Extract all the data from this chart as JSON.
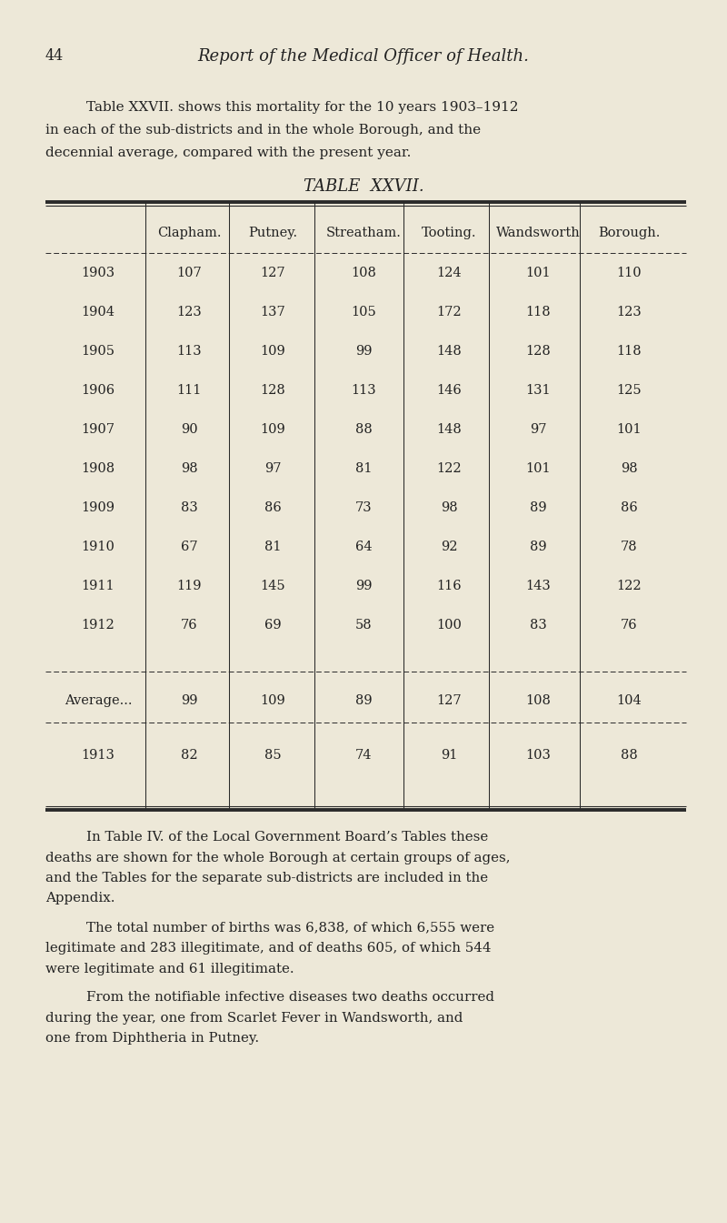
{
  "page_number": "44",
  "page_title": "Report of the Medical Officer of Health.",
  "intro_line1": "Table XXVII. shows this mortality for the 10 years 1903–1912",
  "intro_line2": "in each of the sub-districts and in the whole Borough, and the",
  "intro_line3": "decennial average, compared with the present year.",
  "table_title": "TABLE  XXVII.",
  "col_headers": [
    "",
    "Clapham.",
    "Putney.",
    "Streatham.",
    "Tooting.",
    "Wandsworth",
    "Borough."
  ],
  "rows": [
    [
      "1903",
      "107",
      "127",
      "108",
      "124",
      "101",
      "110"
    ],
    [
      "1904",
      "123",
      "137",
      "105",
      "172",
      "118",
      "123"
    ],
    [
      "1905",
      "113",
      "109",
      "99",
      "148",
      "128",
      "118"
    ],
    [
      "1906",
      "111",
      "128",
      "113",
      "146",
      "131",
      "125"
    ],
    [
      "1907",
      "90",
      "109",
      "88",
      "148",
      "97",
      "101"
    ],
    [
      "1908",
      "98",
      "97",
      "81",
      "122",
      "101",
      "98"
    ],
    [
      "1909",
      "83",
      "86",
      "73",
      "98",
      "89",
      "86"
    ],
    [
      "1910",
      "67",
      "81",
      "64",
      "92",
      "89",
      "78"
    ],
    [
      "1911",
      "119",
      "145",
      "99",
      "116",
      "143",
      "122"
    ],
    [
      "1912",
      "76",
      "69",
      "58",
      "100",
      "83",
      "76"
    ]
  ],
  "average_row": [
    "Average...",
    "99",
    "109",
    "89",
    "127",
    "108",
    "104"
  ],
  "row_1913": [
    "1913",
    "82",
    "85",
    "74",
    "91",
    "103",
    "88"
  ],
  "footer1_line1": "In Table IV. of the Local Government Board’s Tables these",
  "footer1_line2": "deaths are shown for the whole Borough at certain groups of ages,",
  "footer1_line3": "and the Tables for the separate sub-districts are included in the",
  "footer1_line4": "Appendix.",
  "footer2_line1": "The total number of births was 6,838, of which 6,555 were",
  "footer2_line2": "legitimate and 283 illegitimate, and of deaths 605, of which 544",
  "footer2_line3": "were legitimate and 61 illegitimate.",
  "footer3_line1": "From the notifiable infective diseases two deaths occurred",
  "footer3_line2": "during the year, one from Scarlet Fever in Wandsworth, and",
  "footer3_line3": "one from Diphtheria in Putney.",
  "bg_color": "#ede8d8",
  "text_color": "#222222",
  "line_color": "#2a2a2a"
}
